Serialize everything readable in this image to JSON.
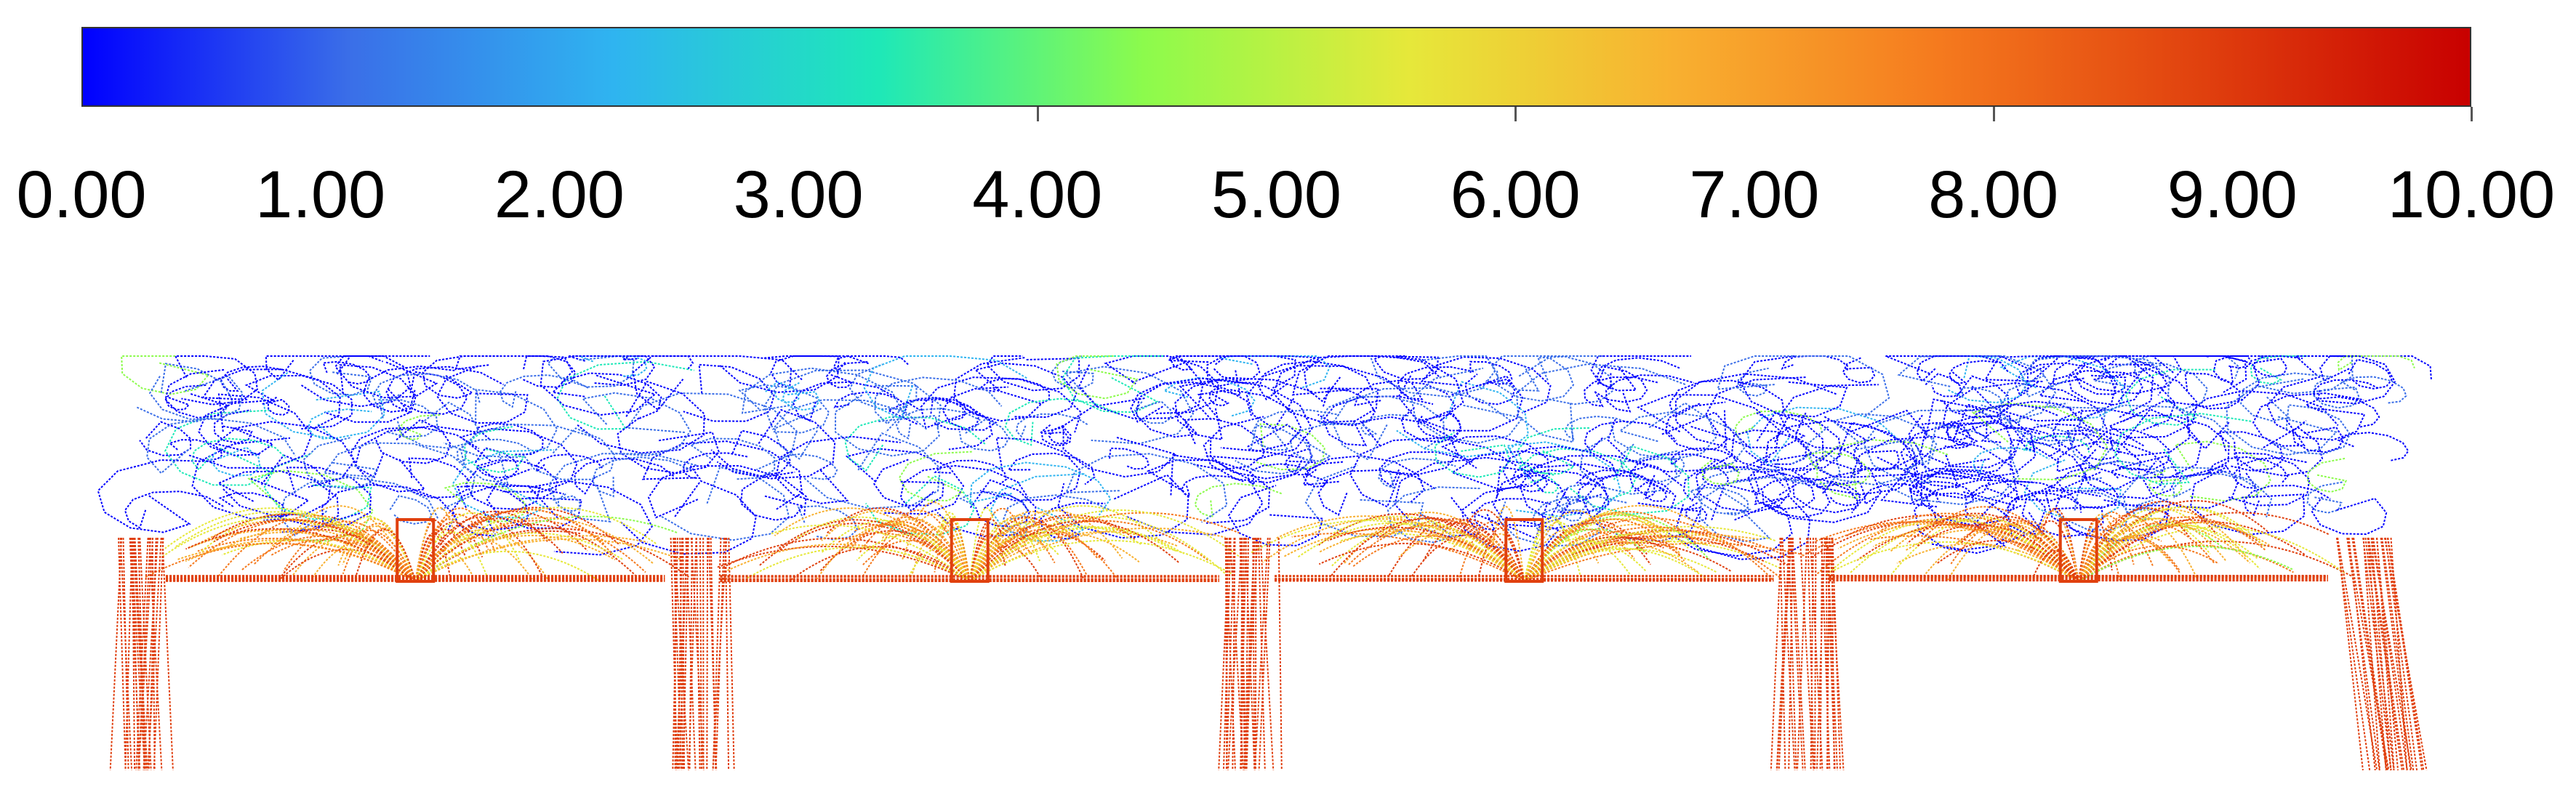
{
  "colorbar": {
    "min": 0,
    "max": 10,
    "ticks": [
      "0.00",
      "1.00",
      "2.00",
      "3.00",
      "4.00",
      "5.00",
      "6.00",
      "7.00",
      "8.00",
      "9.00",
      "10.00"
    ],
    "colors": [
      "#0000ff",
      "#3a6ee8",
      "#2fb4f0",
      "#1ee8b8",
      "#8cfb4c",
      "#e6e83a",
      "#f8b030",
      "#f57a1e",
      "#e0400e",
      "#c80000"
    ]
  },
  "figure": {
    "units": 4,
    "background": "#ffffff"
  }
}
